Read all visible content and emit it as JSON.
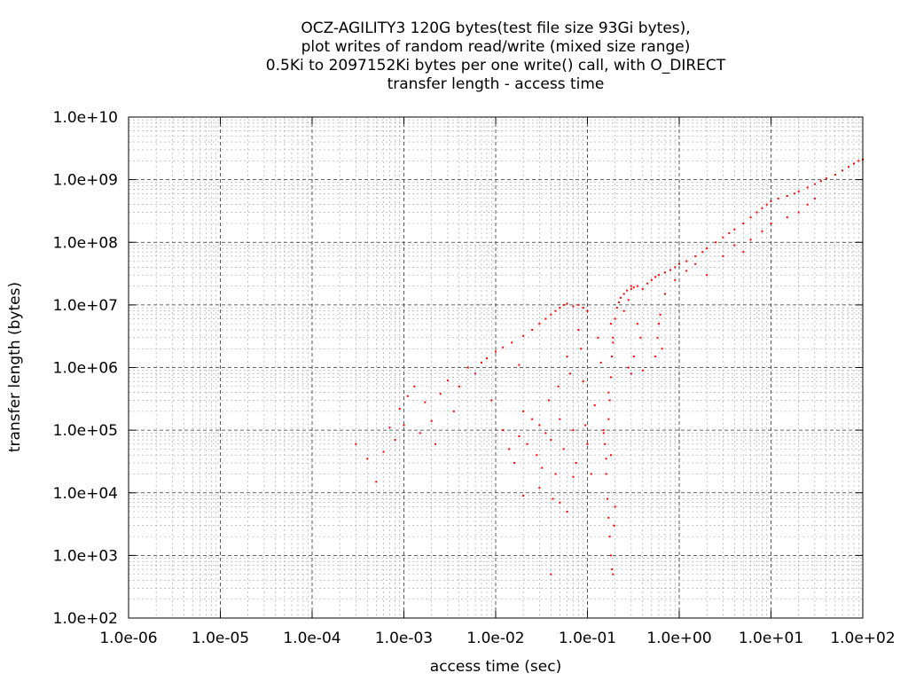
{
  "chart_data": {
    "type": "scatter",
    "title_lines": [
      "OCZ-AGILITY3 120G bytes(test file size 93Gi bytes),",
      "plot writes of random read/write (mixed size range)",
      "0.5Ki to 2097152Ki bytes per one write() call, with O_DIRECT",
      "transfer length - access time"
    ],
    "xlabel": "access time (sec)",
    "ylabel": "transfer length (bytes)",
    "x_scale": "log",
    "y_scale": "log",
    "xlim": [
      1e-06,
      100
    ],
    "ylim": [
      100,
      10000000000
    ],
    "x_tick_values": [
      1e-06,
      1e-05,
      0.0001,
      0.001,
      0.01,
      0.1,
      1,
      10,
      100
    ],
    "x_tick_labels": [
      "1.0e-06",
      "1.0e-05",
      "1.0e-04",
      "1.0e-03",
      "1.0e-02",
      "1.0e-01",
      "1.0e+00",
      "1.0e+01",
      "1.0e+02"
    ],
    "y_tick_values": [
      100,
      1000,
      10000,
      100000,
      1000000,
      10000000,
      100000000,
      1000000000,
      10000000000
    ],
    "y_tick_labels": [
      "1.0e+02",
      "1.0e+03",
      "1.0e+04",
      "1.0e+05",
      "1.0e+06",
      "1.0e+07",
      "1.0e+08",
      "1.0e+09",
      "1.0e+10"
    ],
    "grid": true,
    "minor_grid": true,
    "point_color": "#ff0000",
    "grid_color": "#a0a0a0",
    "series": [
      {
        "points": [
          [
            0.0003,
            60000
          ],
          [
            0.0004,
            35000
          ],
          [
            0.0005,
            15000
          ],
          [
            0.0006,
            45000
          ],
          [
            0.0007,
            110000
          ],
          [
            0.0008,
            70000
          ],
          [
            0.0009,
            220000
          ],
          [
            0.001,
            120000
          ],
          [
            0.0011,
            350000
          ],
          [
            0.0013,
            500000
          ],
          [
            0.0015,
            90000
          ],
          [
            0.0017,
            280000
          ],
          [
            0.002,
            140000
          ],
          [
            0.0022,
            60000
          ],
          [
            0.0025,
            380000
          ],
          [
            0.003,
            620000
          ],
          [
            0.0035,
            200000
          ],
          [
            0.004,
            500000
          ],
          [
            0.005,
            1000000
          ],
          [
            0.006,
            800000
          ],
          [
            0.007,
            1200000
          ],
          [
            0.008,
            1400000
          ],
          [
            0.009,
            300000
          ],
          [
            0.01,
            1800000
          ],
          [
            0.012,
            2100000
          ],
          [
            0.015,
            2500000
          ],
          [
            0.018,
            1100000
          ],
          [
            0.02,
            3200000
          ],
          [
            0.025,
            4000000
          ],
          [
            0.03,
            5000000
          ],
          [
            0.035,
            6000000
          ],
          [
            0.04,
            7000000
          ],
          [
            0.045,
            8000000
          ],
          [
            0.05,
            9000000
          ],
          [
            0.055,
            10000000
          ],
          [
            0.06,
            10500000
          ],
          [
            0.07,
            9500000
          ],
          [
            0.08,
            10000000
          ],
          [
            0.09,
            9000000
          ],
          [
            0.1,
            8000000
          ],
          [
            0.012,
            100000
          ],
          [
            0.014,
            50000
          ],
          [
            0.016,
            30000
          ],
          [
            0.018,
            80000
          ],
          [
            0.02,
            200000
          ],
          [
            0.022,
            60000
          ],
          [
            0.025,
            150000
          ],
          [
            0.028,
            40000
          ],
          [
            0.03,
            120000
          ],
          [
            0.032,
            25000
          ],
          [
            0.035,
            90000
          ],
          [
            0.038,
            300000
          ],
          [
            0.04,
            70000
          ],
          [
            0.042,
            8000
          ],
          [
            0.045,
            20000
          ],
          [
            0.048,
            500000
          ],
          [
            0.05,
            150000
          ],
          [
            0.055,
            50000
          ],
          [
            0.06,
            1500000
          ],
          [
            0.065,
            800000
          ],
          [
            0.07,
            100000
          ],
          [
            0.075,
            30000
          ],
          [
            0.08,
            4000000
          ],
          [
            0.085,
            2000000
          ],
          [
            0.09,
            600000
          ],
          [
            0.095,
            120000
          ],
          [
            0.1,
            60000
          ],
          [
            0.11,
            20000
          ],
          [
            0.12,
            250000
          ],
          [
            0.13,
            3000000
          ],
          [
            0.14,
            1200000
          ],
          [
            0.15,
            90000
          ],
          [
            0.16,
            35000
          ],
          [
            0.17,
            400000
          ],
          [
            0.18,
            5000000
          ],
          [
            0.19,
            2500000
          ],
          [
            0.02,
            9000
          ],
          [
            0.05,
            7000
          ],
          [
            0.06,
            5000
          ],
          [
            0.04,
            500
          ],
          [
            0.03,
            12000
          ],
          [
            0.07,
            18000
          ],
          [
            0.15,
            100000
          ],
          [
            0.155,
            60000
          ],
          [
            0.16,
            20000
          ],
          [
            0.165,
            8000
          ],
          [
            0.17,
            4000
          ],
          [
            0.175,
            2000
          ],
          [
            0.18,
            1000
          ],
          [
            0.185,
            600
          ],
          [
            0.19,
            500
          ],
          [
            0.195,
            3000
          ],
          [
            0.2,
            6000
          ],
          [
            0.18,
            40000
          ],
          [
            0.17,
            150000
          ],
          [
            0.175,
            300000
          ],
          [
            0.18,
            700000
          ],
          [
            0.185,
            1500000
          ],
          [
            0.19,
            3000000
          ],
          [
            0.2,
            6000000
          ],
          [
            0.21,
            9000000
          ],
          [
            0.22,
            11000000
          ],
          [
            0.23,
            13000000
          ],
          [
            0.25,
            15000000
          ],
          [
            0.27,
            17000000
          ],
          [
            0.3,
            18000000
          ],
          [
            0.32,
            19000000
          ],
          [
            0.35,
            20000000
          ],
          [
            0.4,
            18000000
          ],
          [
            0.45,
            22000000
          ],
          [
            0.5,
            25000000
          ],
          [
            0.55,
            28000000
          ],
          [
            0.6,
            30000000
          ],
          [
            0.7,
            33000000
          ],
          [
            0.8,
            36000000
          ],
          [
            0.9,
            40000000
          ],
          [
            1.0,
            45000000
          ],
          [
            1.2,
            50000000
          ],
          [
            1.5,
            60000000
          ],
          [
            1.8,
            70000000
          ],
          [
            2.0,
            80000000
          ],
          [
            2.5,
            100000000
          ],
          [
            3.0,
            120000000
          ],
          [
            3.5,
            140000000
          ],
          [
            4.0,
            160000000
          ],
          [
            5.0,
            200000000
          ],
          [
            6.0,
            250000000
          ],
          [
            7.0,
            300000000
          ],
          [
            8.0,
            350000000
          ],
          [
            9.0,
            400000000
          ],
          [
            10.0,
            450000000
          ],
          [
            12.0,
            500000000
          ],
          [
            15.0,
            550000000
          ],
          [
            18.0,
            600000000
          ],
          [
            20.0,
            650000000
          ],
          [
            25.0,
            750000000
          ],
          [
            30.0,
            850000000
          ],
          [
            35.0,
            950000000
          ],
          [
            40.0,
            1050000000
          ],
          [
            50.0,
            1200000000
          ],
          [
            60.0,
            1400000000
          ],
          [
            70.0,
            1600000000
          ],
          [
            80.0,
            1800000000
          ],
          [
            90.0,
            2000000000
          ],
          [
            100.0,
            2100000000
          ],
          [
            0.28,
            1000000
          ],
          [
            0.3,
            800000
          ],
          [
            0.32,
            1500000
          ],
          [
            0.35,
            5000000
          ],
          [
            0.38,
            3000000
          ],
          [
            0.4,
            900000
          ],
          [
            0.55,
            1500000
          ],
          [
            0.58,
            3000000
          ],
          [
            0.6,
            5000000
          ],
          [
            0.62,
            7000000
          ],
          [
            0.65,
            2000000
          ],
          [
            0.25,
            8000000
          ],
          [
            0.28,
            12000000
          ],
          [
            0.3,
            20000000
          ],
          [
            0.7,
            15000000
          ],
          [
            0.9,
            25000000
          ],
          [
            1.2,
            35000000
          ],
          [
            1.5,
            45000000
          ],
          [
            2.0,
            30000000
          ],
          [
            3.0,
            60000000
          ],
          [
            4.0,
            90000000
          ],
          [
            5.0,
            70000000
          ],
          [
            6.0,
            110000000
          ],
          [
            8.0,
            150000000
          ],
          [
            10.0,
            200000000
          ],
          [
            15.0,
            250000000
          ],
          [
            20.0,
            300000000
          ],
          [
            25.0,
            400000000
          ],
          [
            30.0,
            500000000
          ]
        ]
      }
    ]
  }
}
